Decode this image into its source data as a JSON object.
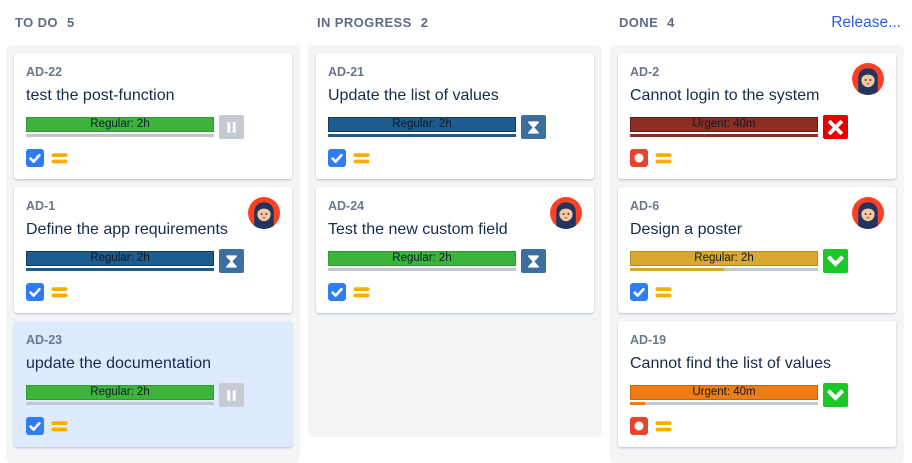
{
  "board": {
    "release_label": "Release...",
    "columns": [
      {
        "name": "TO DO",
        "count": "5",
        "cards": [
          {
            "key": "AD-22",
            "title": "test the post-function",
            "bar_label": "Regular: 2h",
            "bar_color": "#3CB43C",
            "bar_border": "#2E9B2E",
            "track_fill_pct": 0,
            "track_fill_color": "#C1C7D0",
            "action": "pause",
            "type": "task",
            "priority": "medium",
            "avatar": false,
            "selected": false
          },
          {
            "key": "AD-1",
            "title": "Define the app requirements",
            "bar_label": "Regular: 2h",
            "bar_color": "#1D5C8C",
            "bar_border": "#123A5C",
            "track_fill_pct": 100,
            "track_fill_color": "#1D5C8C",
            "action": "hourglass",
            "type": "task",
            "priority": "medium",
            "avatar": true,
            "selected": false
          },
          {
            "key": "AD-23",
            "title": "update the documentation",
            "bar_label": "Regular: 2h",
            "bar_color": "#3CB43C",
            "bar_border": "#2E9B2E",
            "track_fill_pct": 0,
            "track_fill_color": "#C1C7D0",
            "action": "pause",
            "type": "task",
            "priority": "medium",
            "avatar": false,
            "selected": true
          }
        ]
      },
      {
        "name": "IN PROGRESS",
        "count": "2",
        "cards": [
          {
            "key": "AD-21",
            "title": "Update the list of values",
            "bar_label": "Regular: 2h",
            "bar_color": "#1D5C8C",
            "bar_border": "#123A5C",
            "track_fill_pct": 100,
            "track_fill_color": "#1D5C8C",
            "action": "hourglass",
            "type": "task",
            "priority": "medium",
            "avatar": false,
            "selected": false
          },
          {
            "key": "AD-24",
            "title": "Test the new custom field",
            "bar_label": "Regular: 2h",
            "bar_color": "#3CB43C",
            "bar_border": "#2E9B2E",
            "track_fill_pct": 0,
            "track_fill_color": "#C1C7D0",
            "action": "hourglass",
            "type": "task",
            "priority": "medium",
            "avatar": true,
            "selected": false
          }
        ]
      },
      {
        "name": "DONE",
        "count": "4",
        "cards": [
          {
            "key": "AD-2",
            "title": "Cannot login to the system",
            "bar_label": "Urgent: 40m",
            "bar_color": "#8E2D21",
            "bar_border": "#5E1B12",
            "track_fill_pct": 100,
            "track_fill_color": "#8E2D21",
            "action": "cross",
            "type": "bug",
            "priority": "medium",
            "avatar": true,
            "selected": false
          },
          {
            "key": "AD-6",
            "title": "Design a poster",
            "bar_label": "Regular: 2h",
            "bar_color": "#D9A82F",
            "bar_border": "#BA8E1D",
            "track_fill_pct": 50,
            "track_fill_color": "#D9A82F",
            "action": "check",
            "type": "task",
            "priority": "medium",
            "avatar": true,
            "selected": false
          },
          {
            "key": "AD-19",
            "title": "Cannot find the list of values",
            "bar_label": "Urgent: 40m",
            "bar_color": "#EE7D17",
            "bar_border": "#C96408",
            "track_fill_pct": 8,
            "track_fill_color": "#EE7D17",
            "action": "check",
            "type": "bug",
            "priority": "medium",
            "avatar": false,
            "selected": false
          }
        ]
      }
    ]
  },
  "icons": {
    "pause": "pause-icon",
    "hourglass": "hourglass-icon",
    "check": "check-icon",
    "cross": "cross-icon",
    "task": "task-checkbox-icon",
    "bug": "bug-icon",
    "medium": "priority-medium-icon",
    "avatar": "user-avatar"
  },
  "theme": {
    "column_bg": "#F4F5F7",
    "card_bg": "#FFFFFF",
    "selected_card_bg": "#DEEBFF",
    "header_text": "#5E6C84",
    "key_text": "#6B778C",
    "title_text": "#172B4D",
    "bar_label_text": "#0B1A2B",
    "track_gray": "#C1C7D0",
    "release_link": "#2E5BE6",
    "action_colors": {
      "pause": "#C5CAD3",
      "hourglass": "#3D6F9E",
      "check": "#1BC828",
      "cross": "#E80000"
    },
    "type_colors": {
      "task": "#2E7CF6",
      "bug": "#E8432F"
    },
    "priority_color": "#FFAB00",
    "avatar_bg": "#FE4124",
    "avatar_hair": "#22355C",
    "avatar_face": "#F6C9A5"
  }
}
